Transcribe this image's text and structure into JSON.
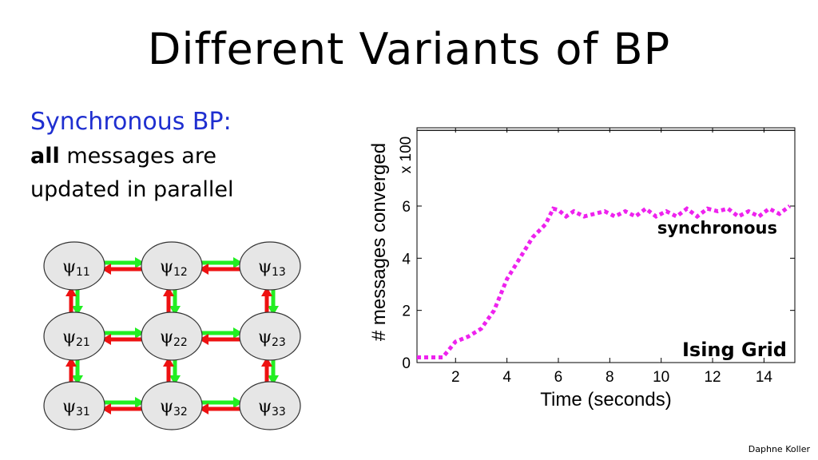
{
  "slide": {
    "title": "Different Variants of BP",
    "subtitle": "Synchronous BP:",
    "desc_bold": "all",
    "desc_rest": " messages are",
    "desc_line2": "updated in parallel",
    "footer": "Daphne Koller"
  },
  "grid": {
    "symbol": "ψ",
    "nodes": [
      [
        "11",
        "12",
        "13"
      ],
      [
        "21",
        "22",
        "23"
      ],
      [
        "31",
        "32",
        "33"
      ]
    ],
    "colors": {
      "node_fill": "#e6e6e6",
      "arrow_red": "#ee1111",
      "arrow_green": "#22ee22"
    }
  },
  "chart_data": {
    "type": "line",
    "xlabel": "Time (seconds)",
    "ylabel": "# messages converged",
    "multiplier": "x 100",
    "xlim": [
      0.5,
      15.2
    ],
    "ylim": [
      0,
      9
    ],
    "xticks": [
      2,
      4,
      6,
      8,
      10,
      12,
      14
    ],
    "yticks": [
      0,
      2,
      4,
      6
    ],
    "annotations": [
      "synchronous",
      "Ising Grid"
    ],
    "reference_line_y": 8.9,
    "series": [
      {
        "color": "#ee22ee",
        "x": [
          0.5,
          1.0,
          1.5,
          2.0,
          2.5,
          3.0,
          3.5,
          4.0,
          4.5,
          5.0,
          5.5,
          5.8,
          6.0,
          6.3,
          6.6,
          7.0,
          7.4,
          7.8,
          8.2,
          8.6,
          9.0,
          9.4,
          9.8,
          10.2,
          10.6,
          11.0,
          11.4,
          11.8,
          12.2,
          12.6,
          13.0,
          13.4,
          13.8,
          14.2,
          14.6,
          15.0
        ],
        "y": [
          0.2,
          0.2,
          0.2,
          0.8,
          1.0,
          1.3,
          2.0,
          3.2,
          4.0,
          4.8,
          5.3,
          5.9,
          5.85,
          5.6,
          5.8,
          5.6,
          5.7,
          5.8,
          5.6,
          5.8,
          5.6,
          5.9,
          5.6,
          5.8,
          5.6,
          5.9,
          5.6,
          5.9,
          5.8,
          5.9,
          5.6,
          5.8,
          5.6,
          5.9,
          5.7,
          6.0
        ]
      }
    ]
  }
}
